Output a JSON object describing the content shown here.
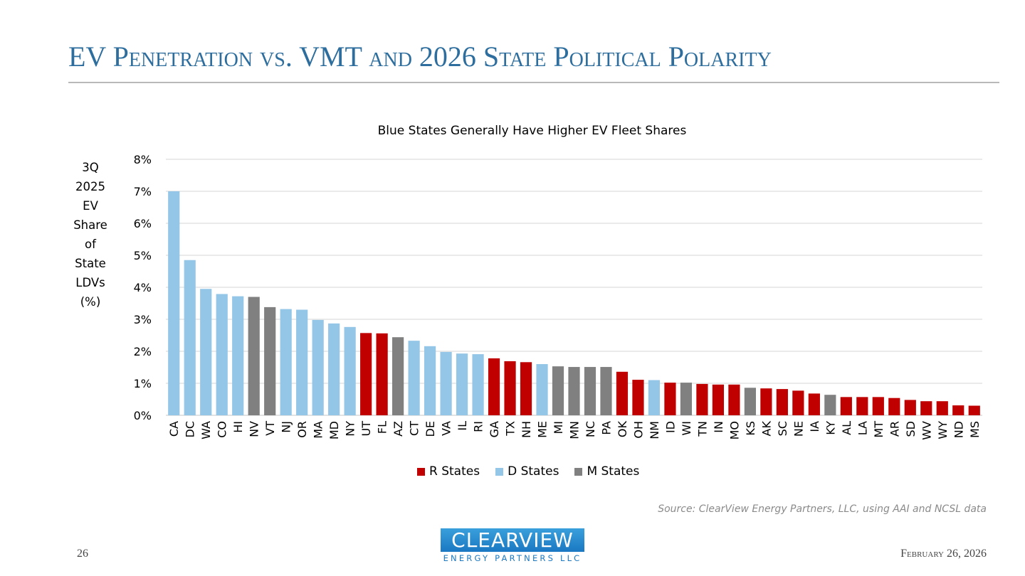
{
  "slide": {
    "title": "EV Penetration vs. VMT and 2026 State Political Polarity",
    "page_number": "26",
    "date": "February 26, 2026",
    "source": "Source: ClearView Energy Partners, LLC, using AAI and NCSL data",
    "logo": {
      "main": "CLEARVIEW",
      "sub": "ENERGY PARTNERS LLC"
    }
  },
  "colors": {
    "R": "#c00000",
    "D": "#94c6e7",
    "M": "#808080",
    "title": "#2d6e9e",
    "grid": "#e3e3e3"
  },
  "chart_data": {
    "type": "bar",
    "title": "Blue States Generally Have Higher EV Fleet Shares",
    "xlabel": "",
    "ylabel_lines": [
      "3Q",
      "2025",
      "EV",
      "Share",
      "of",
      "State",
      "LDVs",
      "(%)"
    ],
    "ylim": [
      0,
      8
    ],
    "yticks": [
      0,
      1,
      2,
      3,
      4,
      5,
      6,
      7,
      8
    ],
    "ytick_labels": [
      "0%",
      "1%",
      "2%",
      "3%",
      "4%",
      "5%",
      "6%",
      "7%",
      "8%"
    ],
    "grid": true,
    "legend_position": "bottom",
    "legend": [
      {
        "key": "R",
        "label": "R States"
      },
      {
        "key": "D",
        "label": "D States"
      },
      {
        "key": "M",
        "label": "M States"
      }
    ],
    "categories": [
      "CA",
      "DC",
      "WA",
      "CO",
      "HI",
      "NV",
      "VT",
      "NJ",
      "OR",
      "MA",
      "MD",
      "NY",
      "UT",
      "FL",
      "AZ",
      "CT",
      "DE",
      "VA",
      "IL",
      "RI",
      "GA",
      "TX",
      "NH",
      "ME",
      "MI",
      "MN",
      "NC",
      "PA",
      "OK",
      "OH",
      "NM",
      "ID",
      "WI",
      "TN",
      "IN",
      "MO",
      "KS",
      "AK",
      "SC",
      "NE",
      "IA",
      "KY",
      "AL",
      "LA",
      "MT",
      "AR",
      "SD",
      "WV",
      "WY",
      "ND",
      "MS"
    ],
    "values": [
      7.0,
      4.85,
      3.95,
      3.79,
      3.72,
      3.7,
      3.38,
      3.32,
      3.3,
      2.98,
      2.87,
      2.76,
      2.57,
      2.56,
      2.44,
      2.33,
      2.16,
      1.98,
      1.93,
      1.91,
      1.78,
      1.69,
      1.66,
      1.6,
      1.53,
      1.51,
      1.51,
      1.51,
      1.36,
      1.11,
      1.1,
      1.02,
      1.02,
      0.98,
      0.96,
      0.96,
      0.86,
      0.84,
      0.82,
      0.77,
      0.68,
      0.64,
      0.57,
      0.57,
      0.57,
      0.54,
      0.48,
      0.44,
      0.44,
      0.31,
      0.3
    ],
    "party": [
      "D",
      "D",
      "D",
      "D",
      "D",
      "M",
      "M",
      "D",
      "D",
      "D",
      "D",
      "D",
      "R",
      "R",
      "M",
      "D",
      "D",
      "D",
      "D",
      "D",
      "R",
      "R",
      "R",
      "D",
      "M",
      "M",
      "M",
      "M",
      "R",
      "R",
      "D",
      "R",
      "M",
      "R",
      "R",
      "R",
      "M",
      "R",
      "R",
      "R",
      "R",
      "M",
      "R",
      "R",
      "R",
      "R",
      "R",
      "R",
      "R",
      "R",
      "R"
    ]
  }
}
